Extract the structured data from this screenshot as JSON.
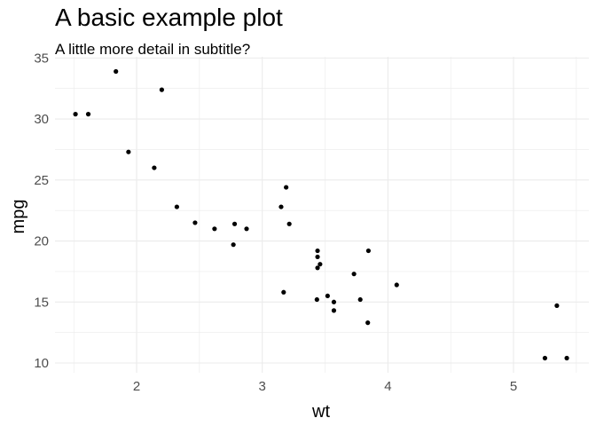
{
  "chart_data": {
    "type": "scatter",
    "title": "A basic example plot",
    "subtitle": "A little more detail in subtitle?",
    "xlabel": "wt",
    "ylabel": "mpg",
    "xlim": [
      1.35,
      5.6
    ],
    "ylim": [
      9.2,
      35.1
    ],
    "xticks": [
      2,
      3,
      4,
      5
    ],
    "yticks": [
      10,
      15,
      20,
      25,
      30,
      35
    ],
    "grid": true,
    "point_color": "#000000",
    "grid_color": "#ebebeb",
    "points": [
      {
        "x": 2.62,
        "y": 21.0
      },
      {
        "x": 2.875,
        "y": 21.0
      },
      {
        "x": 2.32,
        "y": 22.8
      },
      {
        "x": 3.215,
        "y": 21.4
      },
      {
        "x": 3.44,
        "y": 18.7
      },
      {
        "x": 3.46,
        "y": 18.1
      },
      {
        "x": 3.57,
        "y": 14.3
      },
      {
        "x": 3.19,
        "y": 24.4
      },
      {
        "x": 3.15,
        "y": 22.8
      },
      {
        "x": 3.44,
        "y": 19.2
      },
      {
        "x": 3.44,
        "y": 17.8
      },
      {
        "x": 4.07,
        "y": 16.4
      },
      {
        "x": 3.73,
        "y": 17.3
      },
      {
        "x": 3.78,
        "y": 15.2
      },
      {
        "x": 5.25,
        "y": 10.4
      },
      {
        "x": 5.424,
        "y": 10.4
      },
      {
        "x": 5.345,
        "y": 14.7
      },
      {
        "x": 2.2,
        "y": 32.4
      },
      {
        "x": 1.615,
        "y": 30.4
      },
      {
        "x": 1.835,
        "y": 33.9
      },
      {
        "x": 2.465,
        "y": 21.5
      },
      {
        "x": 3.52,
        "y": 15.5
      },
      {
        "x": 3.435,
        "y": 15.2
      },
      {
        "x": 3.84,
        "y": 13.3
      },
      {
        "x": 3.845,
        "y": 19.2
      },
      {
        "x": 1.935,
        "y": 27.3
      },
      {
        "x": 2.14,
        "y": 26.0
      },
      {
        "x": 1.513,
        "y": 30.4
      },
      {
        "x": 3.17,
        "y": 15.8
      },
      {
        "x": 2.77,
        "y": 19.7
      },
      {
        "x": 3.57,
        "y": 15.0
      },
      {
        "x": 2.78,
        "y": 21.4
      }
    ]
  }
}
